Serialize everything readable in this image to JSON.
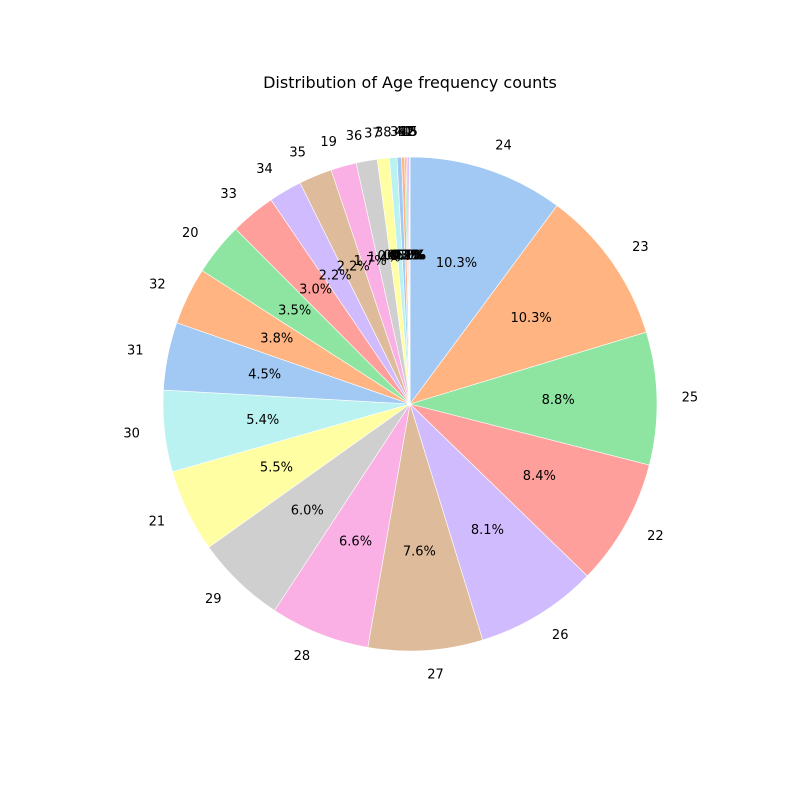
{
  "chart_data": {
    "type": "pie",
    "title": "Distribution of Age frequency counts",
    "start_angle_deg": 90,
    "direction": "clockwise",
    "slices": [
      {
        "label": "24",
        "pct": 10.3,
        "pct_label": "10.3%",
        "color": "#a1c9f4"
      },
      {
        "label": "23",
        "pct": 10.3,
        "pct_label": "10.3%",
        "color": "#ffb482"
      },
      {
        "label": "25",
        "pct": 8.8,
        "pct_label": "8.8%",
        "color": "#8de5a1"
      },
      {
        "label": "22",
        "pct": 8.4,
        "pct_label": "8.4%",
        "color": "#ff9f9b"
      },
      {
        "label": "26",
        "pct": 8.1,
        "pct_label": "8.1%",
        "color": "#d0bbff"
      },
      {
        "label": "27",
        "pct": 7.6,
        "pct_label": "7.6%",
        "color": "#debb9b"
      },
      {
        "label": "28",
        "pct": 6.6,
        "pct_label": "6.6%",
        "color": "#fab0e4"
      },
      {
        "label": "29",
        "pct": 6.0,
        "pct_label": "6.0%",
        "color": "#cfcfcf"
      },
      {
        "label": "21",
        "pct": 5.5,
        "pct_label": "5.5%",
        "color": "#fffea3"
      },
      {
        "label": "30",
        "pct": 5.4,
        "pct_label": "5.4%",
        "color": "#b9f2f0"
      },
      {
        "label": "31",
        "pct": 4.5,
        "pct_label": "4.5%",
        "color": "#a1c9f4"
      },
      {
        "label": "32",
        "pct": 3.8,
        "pct_label": "3.8%",
        "color": "#ffb482"
      },
      {
        "label": "20",
        "pct": 3.5,
        "pct_label": "3.5%",
        "color": "#8de5a1"
      },
      {
        "label": "33",
        "pct": 3.0,
        "pct_label": "3.0%",
        "color": "#ff9f9b"
      },
      {
        "label": "34",
        "pct": 2.2,
        "pct_label": "2.2%",
        "color": "#d0bbff"
      },
      {
        "label": "35",
        "pct": 2.2,
        "pct_label": "2.2%",
        "color": "#debb9b"
      },
      {
        "label": "19",
        "pct": 1.7,
        "pct_label": "1.7%",
        "color": "#fab0e4"
      },
      {
        "label": "36",
        "pct": 1.4,
        "pct_label": "1.4%",
        "color": "#cfcfcf"
      },
      {
        "label": "37",
        "pct": 0.8,
        "pct_label": "0.8%",
        "color": "#fffea3"
      },
      {
        "label": "38",
        "pct": 0.5,
        "pct_label": "0.5%",
        "color": "#b9f2f0"
      },
      {
        "label": "39",
        "pct": 0.3,
        "pct_label": "0.3%",
        "color": "#a1c9f4"
      },
      {
        "label": "40",
        "pct": 0.2,
        "pct_label": "0.2%",
        "color": "#ffb482"
      },
      {
        "label": "41",
        "pct": 0.1,
        "pct_label": "0.1%",
        "color": "#8de5a1"
      },
      {
        "label": "42",
        "pct": 0.1,
        "pct_label": "0.1%",
        "color": "#ff9f9b"
      },
      {
        "label": "18",
        "pct": 0.1,
        "pct_label": "0.1%",
        "color": "#d0bbff"
      },
      {
        "label": "45",
        "pct": 0.05,
        "pct_label": "0.0%",
        "color": "#debb9b"
      }
    ]
  }
}
